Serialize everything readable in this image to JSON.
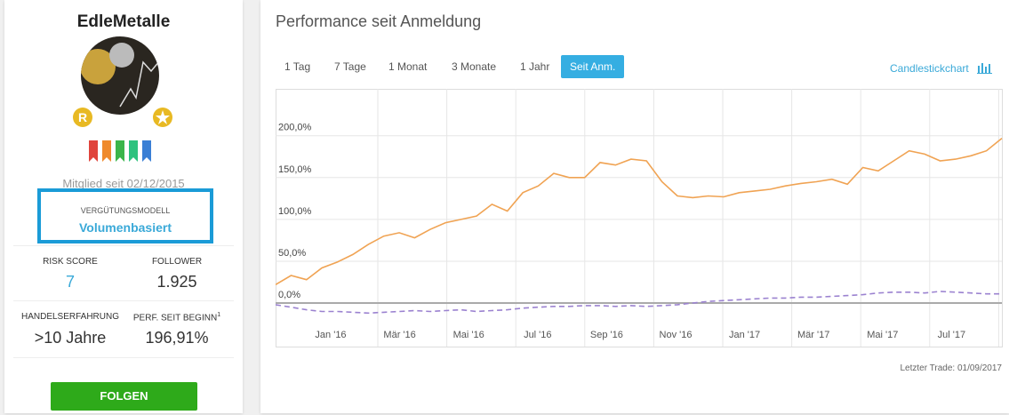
{
  "profile": {
    "name": "EdleMetalle",
    "badge": "R",
    "member_since": "Mitglied seit 02/12/2015",
    "compensation": {
      "label": "VERGÜTUNGSMODELL",
      "value": "Volumenbasiert"
    },
    "stats": [
      {
        "label": "RISK SCORE",
        "value": "7"
      },
      {
        "label": "FOLLOWER",
        "value": "1.925"
      },
      {
        "label": "HANDELSERFAHRUNG",
        "value": ">10 Jahre"
      },
      {
        "label": "PERF. SEIT BEGINN",
        "value": "196,91%"
      }
    ],
    "footnote": "1",
    "button": "FOLGEN"
  },
  "panel": {
    "title": "Performance seit Anmeldung",
    "tabs": [
      "1 Tag",
      "7 Tage",
      "1 Monat",
      "3 Monate",
      "1 Jahr",
      "Seit Anm."
    ],
    "candlestick_link": "Candlestickchart",
    "last_trade": "Letzter Trade: 01/09/2017"
  },
  "chart_data": {
    "type": "line",
    "xtick_labels": [
      "Jan '16",
      "Mär '16",
      "Mai '16",
      "Jul '16",
      "Sep '16",
      "Nov '16",
      "Jan '17",
      "Mär '17",
      "Mai '17",
      "Jul '17"
    ],
    "ylim": [
      -52,
      256
    ],
    "yticks": [
      {
        "value": 0,
        "label": "0,0%"
      },
      {
        "value": 50,
        "label": "50,0%"
      },
      {
        "value": 100,
        "label": "100,0%"
      },
      {
        "value": 150,
        "label": "150,0%"
      },
      {
        "value": 200,
        "label": "200,0%"
      }
    ],
    "grid": true,
    "series": [
      {
        "color": "#f0a353",
        "values": [
          22,
          33,
          28,
          42,
          49,
          58,
          70,
          80,
          84,
          78,
          88,
          96,
          100,
          104,
          118,
          110,
          132,
          140,
          155,
          150,
          150,
          168,
          165,
          172,
          170,
          145,
          128,
          126,
          128,
          127,
          132,
          134,
          136,
          140,
          143,
          145,
          148,
          142,
          162,
          158,
          170,
          182,
          178,
          170,
          172,
          176,
          182,
          196.91
        ]
      },
      {
        "color": "#9b82d0",
        "dashed": true,
        "values": [
          -2,
          -5,
          -8,
          -10,
          -10,
          -11,
          -12,
          -11,
          -10,
          -9,
          -10,
          -9,
          -8,
          -10,
          -9,
          -8,
          -6,
          -5,
          -4,
          -4,
          -3,
          -3,
          -4,
          -3,
          -4,
          -3,
          -2,
          0,
          2,
          3,
          4,
          5,
          6,
          6,
          7,
          7,
          8,
          9,
          10,
          12,
          13,
          13,
          12,
          14,
          13,
          12,
          11,
          11
        ]
      }
    ]
  }
}
